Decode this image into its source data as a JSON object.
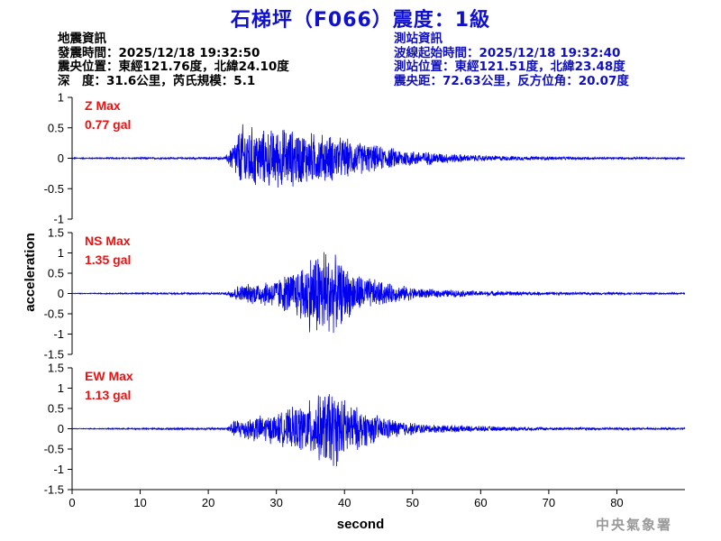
{
  "title": "石梯坪（F066）震度：1級",
  "earthquake_info": {
    "heading": "地震資訊",
    "origin_time": "發震時間：2025/12/18 19:32:50",
    "epicenter": "震央位置：東經121.76度，北緯24.10度",
    "depth_magnitude": "深　度：31.6公里，芮氏規模：5.1"
  },
  "station_info": {
    "heading": "測站資訊",
    "wave_start": "波線起始時間：2025/12/18 19:32:40",
    "station_location": "測站位置：東經121.51度，北緯23.48度",
    "distance_azimuth": "震央距：72.63公里，反方位角：20.07度"
  },
  "watermark": "中央氣象署",
  "colors": {
    "trace": "#0000ee",
    "label": "#ee1111",
    "title": "#1010d0",
    "info_right": "#1010c0"
  },
  "chart_data": {
    "type": "line",
    "xlabel": "second",
    "ylabel": "acceleration",
    "xlim": [
      0,
      90
    ],
    "xticks": [
      0,
      10,
      20,
      30,
      40,
      50,
      60,
      70,
      80
    ],
    "grid": false,
    "panels": [
      {
        "name": "Z Max",
        "max_label": "0.77 gal",
        "ylim": [
          -1,
          1
        ],
        "yticks": [
          -1,
          -0.5,
          0,
          0.5,
          1
        ],
        "envelope": {
          "t": [
            0,
            22.5,
            23.5,
            25,
            28,
            31,
            34,
            38,
            42,
            46,
            50,
            55,
            60,
            70,
            80,
            90
          ],
          "amp": [
            0.01,
            0.02,
            0.25,
            0.62,
            0.5,
            0.55,
            0.48,
            0.42,
            0.3,
            0.2,
            0.14,
            0.09,
            0.05,
            0.03,
            0.02,
            0.015
          ]
        }
      },
      {
        "name": "NS Max",
        "max_label": "1.35 gal",
        "ylim": [
          -1.5,
          1.5
        ],
        "yticks": [
          -1.5,
          -1,
          -0.5,
          0,
          0.5,
          1,
          1.5
        ],
        "envelope": {
          "t": [
            0,
            22.5,
            24,
            27,
            30,
            33,
            35,
            37,
            39,
            41,
            44,
            47,
            52,
            60,
            70,
            80,
            90
          ],
          "amp": [
            0.01,
            0.03,
            0.2,
            0.3,
            0.4,
            0.65,
            1.05,
            1.3,
            0.9,
            0.6,
            0.4,
            0.25,
            0.12,
            0.07,
            0.04,
            0.03,
            0.02
          ]
        }
      },
      {
        "name": "EW Max",
        "max_label": "1.13 gal",
        "ylim": [
          -1.5,
          1.5
        ],
        "yticks": [
          -1.5,
          -1,
          -0.5,
          0,
          0.5,
          1,
          1.5
        ],
        "envelope": {
          "t": [
            0,
            22.5,
            24,
            27,
            30,
            33,
            36,
            38,
            40,
            42,
            45,
            48,
            52,
            60,
            70,
            80,
            90
          ],
          "amp": [
            0.01,
            0.03,
            0.25,
            0.35,
            0.4,
            0.6,
            0.85,
            1.1,
            0.8,
            0.55,
            0.35,
            0.22,
            0.12,
            0.07,
            0.04,
            0.03,
            0.02
          ]
        }
      }
    ]
  }
}
